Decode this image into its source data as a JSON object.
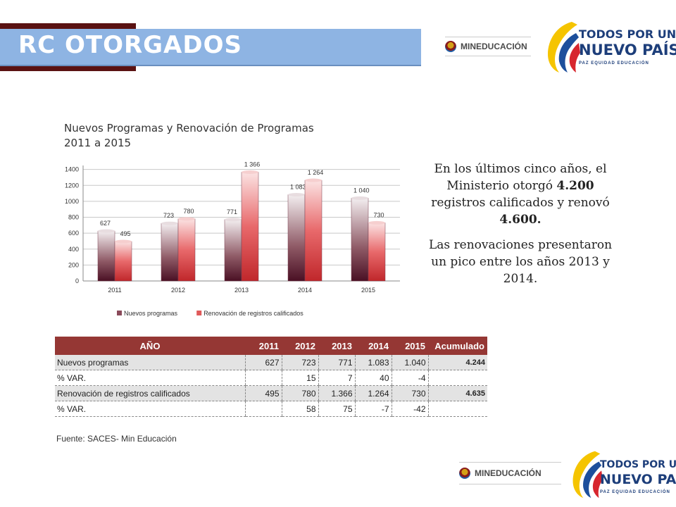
{
  "header": {
    "title": "RC OTORGADOS"
  },
  "logos": {
    "mineducacion": "MINEDUCACIÓN",
    "todos_line1": "TODOS POR UN",
    "todos_line2": "NUEVO PAÍS",
    "todos_line3": "PAZ EQUIDAD EDUCACIÓN"
  },
  "chart_title_line1": "Nuevos Programas y Renovación de Programas",
  "chart_title_line2": "2011 a 2015",
  "chart_data": {
    "type": "bar",
    "categories": [
      "2011",
      "2012",
      "2013",
      "2014",
      "2015"
    ],
    "series": [
      {
        "name": "Nuevos programas",
        "values": [
          627,
          723,
          771,
          1083,
          1040
        ],
        "labels": [
          "627",
          "723",
          "771",
          "1 083",
          "1 040"
        ],
        "color": "#8a4a5a"
      },
      {
        "name": "Renovación de registros calificados",
        "values": [
          495,
          780,
          1366,
          1264,
          730
        ],
        "labels": [
          "495",
          "780",
          "1 366",
          "1 264",
          "730"
        ],
        "color": "#e05a5a"
      }
    ],
    "yticks": [
      0,
      200,
      400,
      600,
      800,
      1000,
      1200,
      1400
    ],
    "ylim": [
      0,
      1450
    ],
    "grid": true,
    "legend": "bottom"
  },
  "narrative": {
    "p1_pre": "En los últimos cinco años, el Ministerio otorgó ",
    "p1_b1": "4.200",
    "p1_mid": " registros calificados y renovó ",
    "p1_b2": "4.600.",
    "p2": "Las renovaciones presentaron un pico entre los años 2013 y 2014."
  },
  "table": {
    "headers": [
      "AÑO",
      "2011",
      "2012",
      "2013",
      "2014",
      "2015",
      "Acumulado"
    ],
    "rows": [
      [
        "Nuevos programas",
        "627",
        "723",
        "771",
        "1.083",
        "1.040",
        "4.244"
      ],
      [
        "% VAR.",
        "",
        "15",
        "7",
        "40",
        "-4",
        ""
      ],
      [
        "Renovación de registros calificados",
        "495",
        "780",
        "1.366",
        "1.264",
        "730",
        "4.635"
      ],
      [
        "% VAR.",
        "",
        "58",
        "75",
        "-7",
        "-42",
        ""
      ]
    ]
  },
  "source": "Fuente: SACES- Min Educación"
}
